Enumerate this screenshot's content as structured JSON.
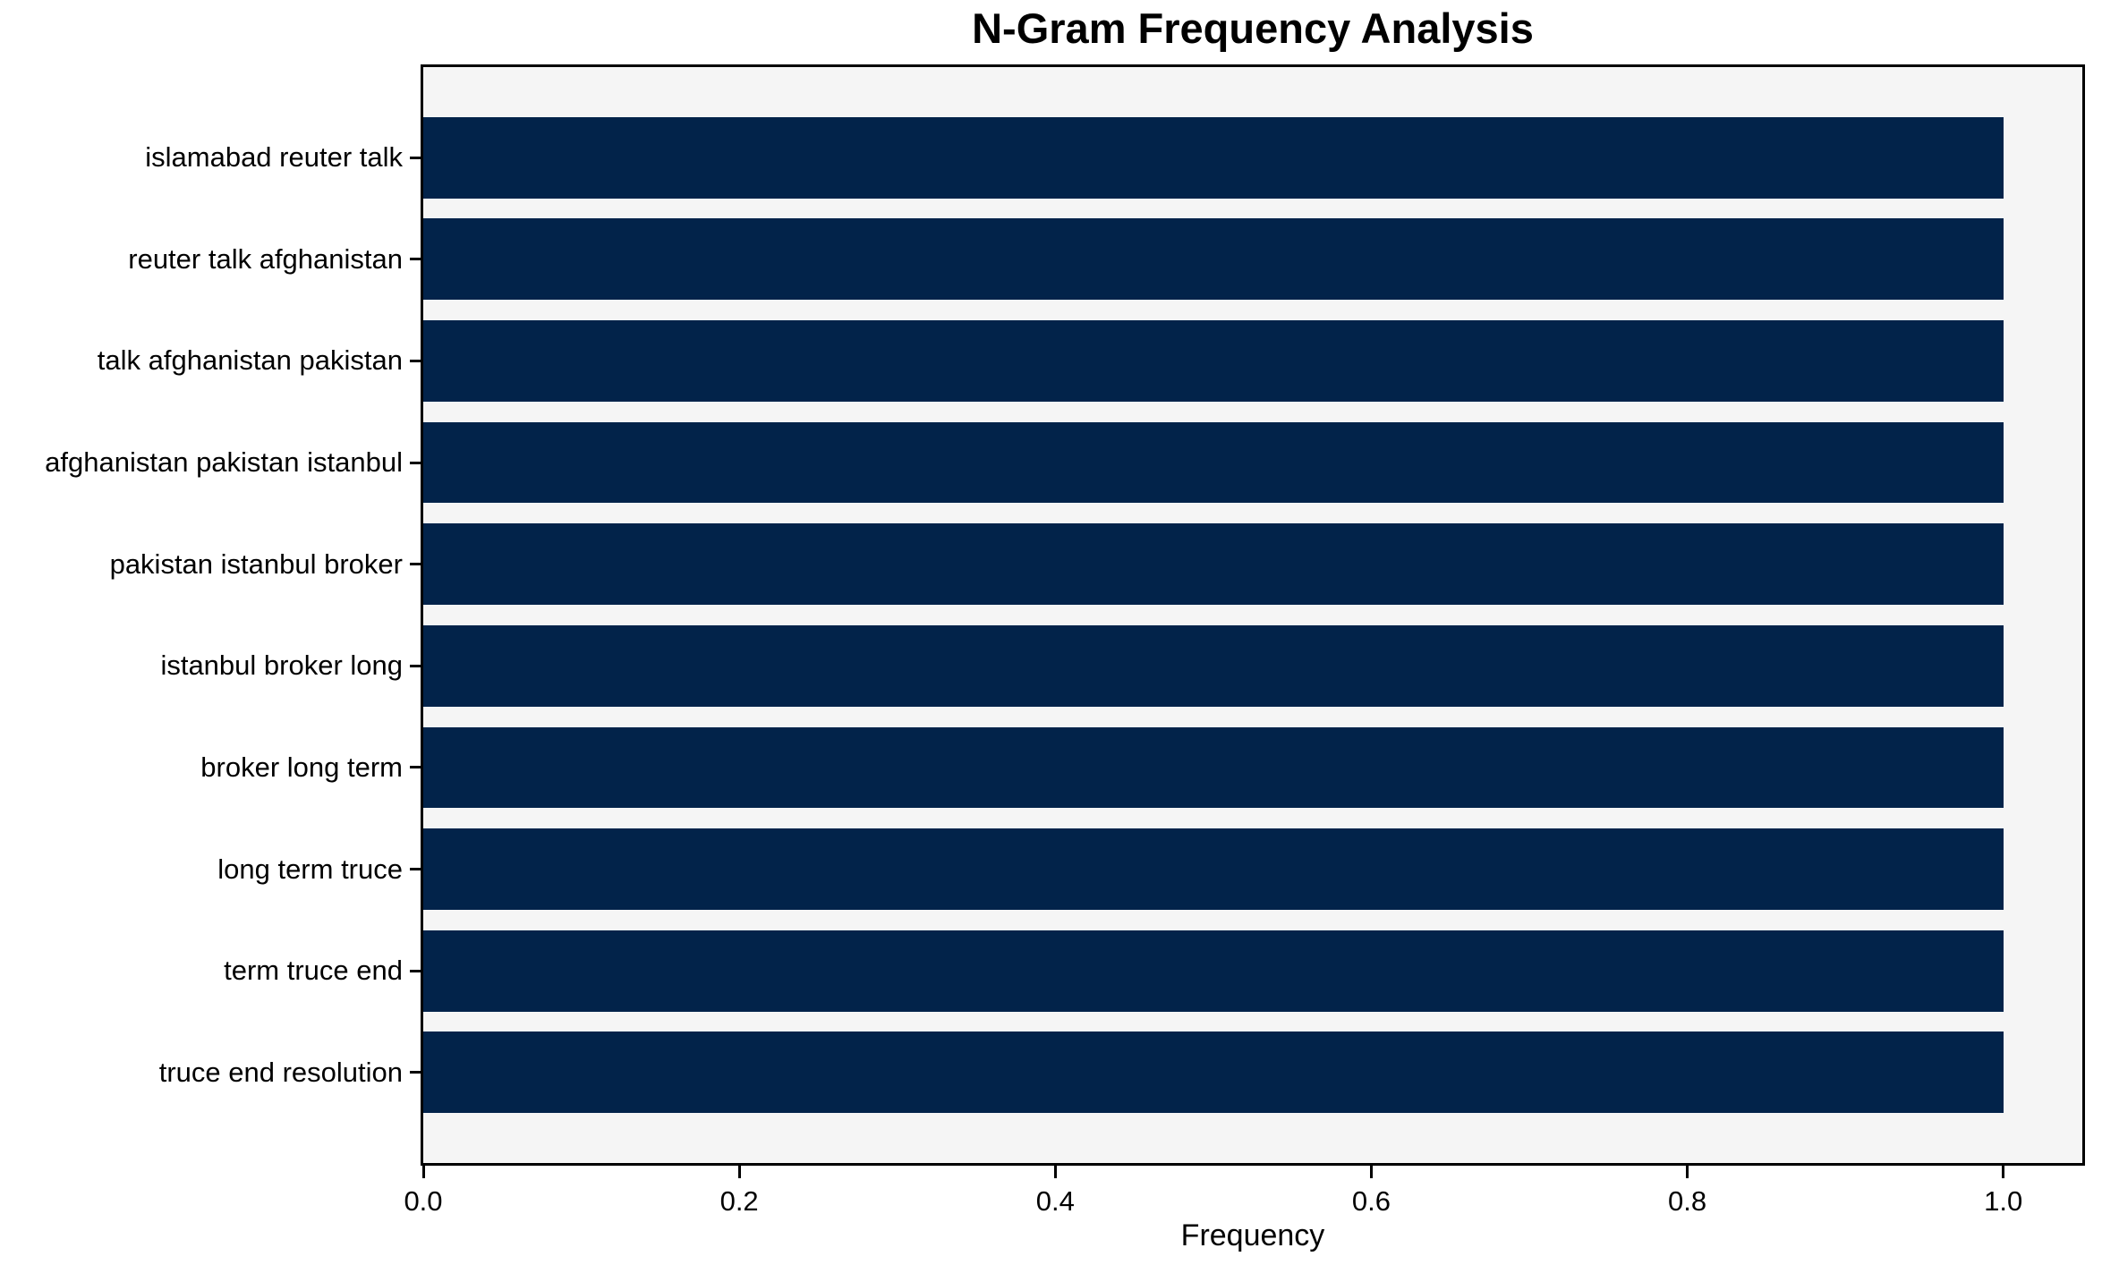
{
  "title": "N-Gram Frequency Analysis",
  "chart_data": {
    "type": "bar",
    "orientation": "horizontal",
    "title": "N-Gram Frequency Analysis",
    "xlabel": "Frequency",
    "ylabel": "",
    "categories": [
      "islamabad reuter talk",
      "reuter talk afghanistan",
      "talk afghanistan pakistan",
      "afghanistan pakistan istanbul",
      "pakistan istanbul broker",
      "istanbul broker long",
      "broker long term",
      "long term truce",
      "term truce end",
      "truce end resolution"
    ],
    "values": [
      1.0,
      1.0,
      1.0,
      1.0,
      1.0,
      1.0,
      1.0,
      1.0,
      1.0,
      1.0
    ],
    "xlim": [
      0,
      1.05
    ],
    "xticks": [
      0.0,
      0.2,
      0.4,
      0.6,
      0.8,
      1.0
    ],
    "xtick_labels": [
      "0.0",
      "0.2",
      "0.4",
      "0.6",
      "0.8",
      "1.0"
    ],
    "grid": false,
    "legend": null,
    "bar_color": "#02234a",
    "plot_background": "#f5f5f5",
    "figure_background": "#ffffff",
    "text_color": "#000000"
  }
}
